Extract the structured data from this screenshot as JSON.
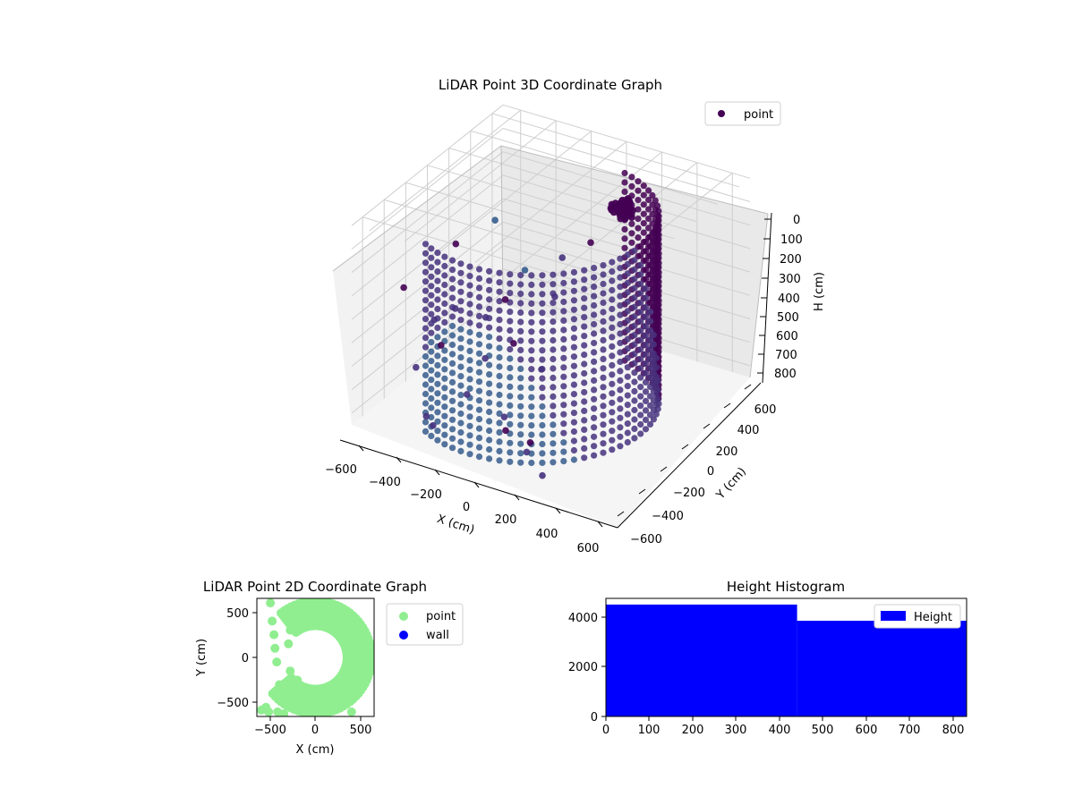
{
  "chart_data": [
    {
      "type": "scatter3d",
      "title": "LiDAR Point 3D Coordinate Graph",
      "xlabel": "X (cm)",
      "ylabel": "Y (cm)",
      "zlabel": "H (cm)",
      "xlim": [
        -700,
        700
      ],
      "ylim": [
        -700,
        700
      ],
      "zlim": [
        0,
        850
      ],
      "z_inverted": true,
      "xticks": [
        "−600",
        "−400",
        "−200",
        "0",
        "200",
        "400",
        "600"
      ],
      "yticks": [
        "−600",
        "−400",
        "−200",
        "0",
        "200",
        "400",
        "600"
      ],
      "zticks": [
        "0",
        "100",
        "200",
        "300",
        "400",
        "500",
        "600",
        "700",
        "800"
      ],
      "legend": [
        "point"
      ],
      "legend_position": "top-right",
      "grid": true,
      "colormap": "viridis",
      "series": [
        {
          "name": "point",
          "wall": {
            "x_center": 0,
            "y_center": -150,
            "radius": 600,
            "angle_start_deg": -120,
            "angle_end_deg": 75,
            "h_top": 0,
            "h_bottom": 800
          },
          "cluster_top": {
            "x_center": 150,
            "y_center": 420,
            "h": 150
          },
          "scatter_sample": [
            [
              -650,
              -300,
              400
            ],
            [
              -600,
              -100,
              600
            ],
            [
              -550,
              -350,
              700
            ],
            [
              -500,
              -200,
              650
            ],
            [
              -450,
              -150,
              500
            ],
            [
              -400,
              50,
              600
            ],
            [
              -350,
              150,
              550
            ],
            [
              -300,
              250,
              450
            ],
            [
              -250,
              -200,
              650
            ],
            [
              -200,
              -450,
              700
            ],
            [
              -150,
              -100,
              600
            ],
            [
              -100,
              200,
              500
            ],
            [
              -50,
              -350,
              800
            ],
            [
              50,
              -500,
              780
            ],
            [
              100,
              -250,
              600
            ],
            [
              200,
              -550,
              820
            ],
            [
              -600,
              100,
              350
            ],
            [
              -500,
              300,
              300
            ],
            [
              -400,
              -500,
              820
            ],
            [
              -300,
              -600,
              800
            ],
            [
              250,
              -600,
              750
            ],
            [
              350,
              -650,
              850
            ],
            [
              -150,
              350,
              400
            ],
            [
              -50,
              450,
              350
            ]
          ]
        }
      ]
    },
    {
      "type": "scatter",
      "title": "LiDAR Point 2D Coordinate Graph",
      "xlabel": "X (cm)",
      "ylabel": "Y (cm)",
      "xlim": [
        -650,
        650
      ],
      "ylim": [
        -650,
        650
      ],
      "xticks": [
        "−500",
        "0",
        "500"
      ],
      "yticks": [
        "−500",
        "0",
        "500"
      ],
      "legend": [
        "point",
        "wall"
      ],
      "legend_position": "outside-right",
      "series": [
        {
          "name": "point",
          "color": "#90ee90",
          "arc": {
            "x_center": 0,
            "y_center": 0,
            "radius": 600,
            "angle_start_deg": -140,
            "angle_end_deg": 130,
            "thickness": 250
          },
          "points": [
            [
              -500,
              600
            ],
            [
              -480,
              400
            ],
            [
              -460,
              250
            ],
            [
              -450,
              100
            ],
            [
              -430,
              -50
            ],
            [
              -400,
              -300
            ],
            [
              -350,
              -400
            ],
            [
              -300,
              -450
            ],
            [
              -250,
              -500
            ],
            [
              -200,
              -480
            ],
            [
              -150,
              -420
            ],
            [
              -100,
              -400
            ],
            [
              -50,
              -380
            ],
            [
              0,
              -450
            ],
            [
              50,
              -460
            ],
            [
              100,
              -400
            ],
            [
              150,
              -360
            ],
            [
              200,
              -350
            ],
            [
              250,
              -420
            ],
            [
              400,
              -600
            ],
            [
              -550,
              -550
            ],
            [
              -600,
              -580
            ],
            [
              -520,
              -600
            ],
            [
              -420,
              -600
            ],
            [
              -350,
              -620
            ],
            [
              -300,
              400
            ],
            [
              -280,
              300
            ],
            [
              -300,
              150
            ],
            [
              -280,
              -150
            ],
            [
              -200,
              -250
            ]
          ]
        },
        {
          "name": "wall",
          "color": "#0000ff",
          "points": []
        }
      ]
    },
    {
      "type": "histogram",
      "title": "Height Histogram",
      "xlim": [
        0,
        830
      ],
      "ylim": [
        0,
        4750
      ],
      "xticks": [
        "0",
        "100",
        "200",
        "300",
        "400",
        "500",
        "600",
        "700",
        "800"
      ],
      "yticks": [
        "0",
        "2000",
        "4000"
      ],
      "legend": [
        "Height"
      ],
      "legend_position": "upper right",
      "series": [
        {
          "name": "Height",
          "color": "#0000ff",
          "bins": [
            {
              "x0": 0,
              "x1": 440,
              "count": 4500
            },
            {
              "x0": 440,
              "x1": 830,
              "count": 3850
            }
          ]
        }
      ]
    }
  ]
}
